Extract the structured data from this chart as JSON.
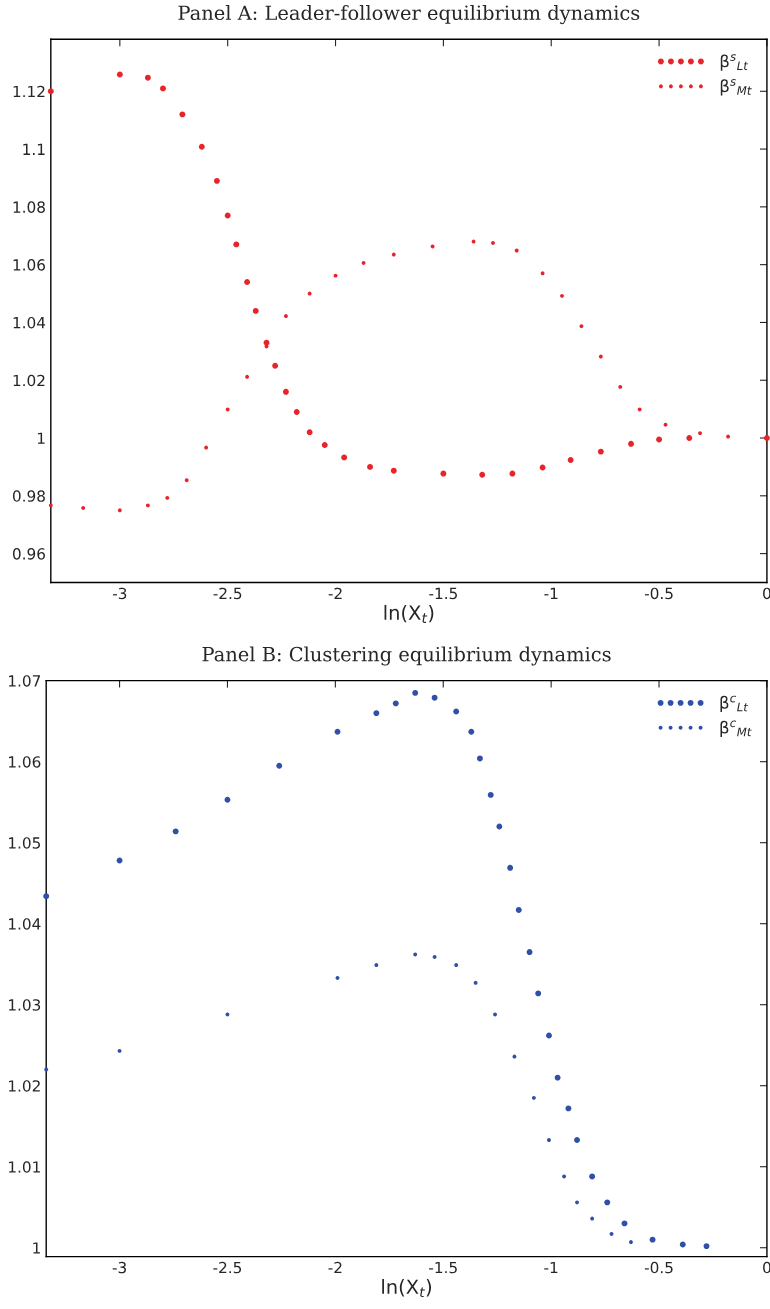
{
  "chart_data": [
    {
      "type": "scatter",
      "title": "Panel A: Leader-follower equilibrium dynamics",
      "xlabel": "ln(X$_{t}$)",
      "xlim": [
        -3.32,
        0
      ],
      "ylim": [
        0.95,
        1.138
      ],
      "xticks": [
        -3,
        -2.5,
        -2,
        -1.5,
        -1,
        -0.5,
        0
      ],
      "yticks": [
        0.96,
        0.98,
        1,
        1.02,
        1.04,
        1.06,
        1.08,
        1.1,
        1.12
      ],
      "grid": false,
      "legend": "top right",
      "marker": "circle",
      "series": [
        {
          "name": "β$^{s}$$_{Lt}$",
          "color": "#e8242b",
          "x": [
            -3.32,
            -3.0,
            -2.87,
            -2.8,
            -2.71,
            -2.62,
            -2.55,
            -2.5,
            -2.46,
            -2.41,
            -2.37,
            -2.32,
            -2.28,
            -2.23,
            -2.18,
            -2.12,
            -2.05,
            -1.96,
            -1.84,
            -1.73,
            -1.5,
            -1.32,
            -1.18,
            -1.04,
            -0.91,
            -0.77,
            -0.63,
            -0.5,
            -0.36,
            0
          ],
          "values": [
            1.12,
            1.1258,
            1.1247,
            1.121,
            1.112,
            1.1008,
            1.089,
            1.077,
            1.067,
            1.054,
            1.044,
            1.033,
            1.025,
            1.016,
            1.009,
            1.002,
            0.9976,
            0.9933,
            0.99,
            0.9887,
            0.9877,
            0.9873,
            0.9877,
            0.9898,
            0.9924,
            0.9953,
            0.998,
            0.9995,
            1.0,
            1.0
          ]
        },
        {
          "name": "β$^{s}$$_{Mt}$",
          "color": "#e8242b",
          "x": [
            -3.32,
            -3.17,
            -3.0,
            -2.87,
            -2.78,
            -2.69,
            -2.6,
            -2.5,
            -2.41,
            -2.32,
            -2.23,
            -2.12,
            -2.0,
            -1.87,
            -1.73,
            -1.55,
            -1.36,
            -1.27,
            -1.16,
            -1.04,
            -0.95,
            -0.86,
            -0.77,
            -0.68,
            -0.59,
            -0.47,
            -0.31,
            -0.18
          ],
          "values": [
            0.9767,
            0.9758,
            0.975,
            0.9767,
            0.9793,
            0.9854,
            0.9967,
            1.0099,
            1.0212,
            1.0317,
            1.0422,
            1.05,
            1.0562,
            1.0606,
            1.0635,
            1.0663,
            1.068,
            1.0675,
            1.0649,
            1.057,
            1.0492,
            1.0387,
            1.0282,
            1.0177,
            1.0099,
            1.0046,
            1.0017,
            1.0005
          ]
        }
      ]
    },
    {
      "type": "scatter",
      "title": "Panel B: Clustering equilibrium dynamics",
      "xlabel": "ln(X$_{t}$)",
      "xlim": [
        -3.34,
        0
      ],
      "ylim": [
        0.9989,
        1.07
      ],
      "xticks": [
        -3,
        -2.5,
        -2,
        -1.5,
        -1,
        -0.5,
        0
      ],
      "yticks": [
        1,
        1.01,
        1.02,
        1.03,
        1.04,
        1.05,
        1.06,
        1.07
      ],
      "grid": false,
      "legend": "top right",
      "marker": "circle",
      "series": [
        {
          "name": "β$^{c}$$_{Lt}$",
          "color": "#2f4fa8",
          "x": [
            -3.34,
            -3.0,
            -2.74,
            -2.5,
            -2.26,
            -1.99,
            -1.81,
            -1.72,
            -1.63,
            -1.54,
            -1.44,
            -1.37,
            -1.33,
            -1.28,
            -1.24,
            -1.19,
            -1.15,
            -1.1,
            -1.06,
            -1.01,
            -0.97,
            -0.92,
            -0.88,
            -0.81,
            -0.74,
            -0.66,
            -0.53,
            -0.39,
            -0.28
          ],
          "values": [
            1.0434,
            1.0478,
            1.0514,
            1.0553,
            1.0595,
            1.0637,
            1.066,
            1.0672,
            1.0685,
            1.0679,
            1.0662,
            1.0637,
            1.0604,
            1.0559,
            1.052,
            1.0469,
            1.0417,
            1.0365,
            1.0314,
            1.0262,
            1.021,
            1.0172,
            1.0133,
            1.0088,
            1.0056,
            1.003,
            1.001,
            1.0004,
            1.0002
          ]
        },
        {
          "name": "β$^{c}$$_{Mt}$",
          "color": "#2f4fa8",
          "x": [
            -3.34,
            -3.0,
            -2.5,
            -1.99,
            -1.81,
            -1.63,
            -1.54,
            -1.44,
            -1.35,
            -1.26,
            -1.17,
            -1.08,
            -1.01,
            -0.94,
            -0.88,
            -0.81,
            -0.72,
            -0.63
          ],
          "values": [
            1.022,
            1.0243,
            1.0288,
            1.0333,
            1.0349,
            1.0362,
            1.0359,
            1.0349,
            1.0327,
            1.0288,
            1.0236,
            1.0185,
            1.0133,
            1.0088,
            1.0056,
            1.0036,
            1.0017,
            1.0007
          ]
        }
      ]
    }
  ]
}
